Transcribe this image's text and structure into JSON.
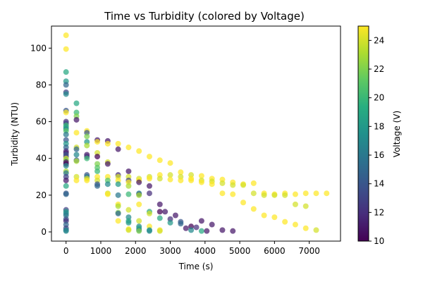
{
  "chart_data": {
    "type": "scatter",
    "title": "Time vs Turbidity (colored by Voltage)",
    "xlabel": "Time (s)",
    "ylabel": "Turbidity (NTU)",
    "xlim": [
      -420,
      7900
    ],
    "ylim": [
      -5,
      112
    ],
    "xticks": [
      0,
      1000,
      2000,
      3000,
      4000,
      5000,
      6000,
      7000
    ],
    "yticks": [
      0,
      20,
      40,
      60,
      80,
      100
    ],
    "grid": false,
    "colorbar": {
      "label": "Voltage (V)",
      "range": [
        10,
        25
      ],
      "ticks": [
        10,
        12,
        14,
        16,
        18,
        20,
        22,
        24
      ],
      "colormap": "viridis"
    },
    "series": [
      {
        "points": [
          {
            "x": 0,
            "y": 107,
            "v": 25
          },
          {
            "x": 0,
            "y": 99.5,
            "v": 25
          },
          {
            "x": 0,
            "y": 87,
            "v": 19
          },
          {
            "x": 0,
            "y": 82,
            "v": 18
          },
          {
            "x": 0,
            "y": 80,
            "v": 15
          },
          {
            "x": 0,
            "y": 76,
            "v": 13
          },
          {
            "x": 0,
            "y": 75,
            "v": 17
          },
          {
            "x": 0,
            "y": 66,
            "v": 14
          },
          {
            "x": 0,
            "y": 65,
            "v": 25
          },
          {
            "x": 0,
            "y": 60,
            "v": 12
          },
          {
            "x": 0,
            "y": 59,
            "v": 13
          },
          {
            "x": 0,
            "y": 58,
            "v": 20
          },
          {
            "x": 0,
            "y": 57,
            "v": 19
          },
          {
            "x": 0,
            "y": 56,
            "v": 17
          },
          {
            "x": 0,
            "y": 55,
            "v": 21
          },
          {
            "x": 0,
            "y": 53,
            "v": 16
          },
          {
            "x": 0,
            "y": 50,
            "v": 14
          },
          {
            "x": 0,
            "y": 48,
            "v": 18
          },
          {
            "x": 0,
            "y": 46,
            "v": 15
          },
          {
            "x": 0,
            "y": 44,
            "v": 12
          },
          {
            "x": 0,
            "y": 43,
            "v": 11
          },
          {
            "x": 0,
            "y": 42,
            "v": 14
          },
          {
            "x": 0,
            "y": 41,
            "v": 13
          },
          {
            "x": 0,
            "y": 40,
            "v": 24
          },
          {
            "x": 0,
            "y": 39,
            "v": 22
          },
          {
            "x": 0,
            "y": 38,
            "v": 11
          },
          {
            "x": 0,
            "y": 37,
            "v": 10
          },
          {
            "x": 0,
            "y": 36,
            "v": 17
          },
          {
            "x": 0,
            "y": 33,
            "v": 23
          },
          {
            "x": 0,
            "y": 32,
            "v": 16
          },
          {
            "x": 0,
            "y": 30,
            "v": 13
          },
          {
            "x": 0,
            "y": 28,
            "v": 11
          },
          {
            "x": 0,
            "y": 25,
            "v": 19
          },
          {
            "x": 0,
            "y": 21,
            "v": 14
          },
          {
            "x": 0,
            "y": 20.5,
            "v": 15
          },
          {
            "x": 0,
            "y": 12,
            "v": 13
          },
          {
            "x": 0,
            "y": 11,
            "v": 18
          },
          {
            "x": 0,
            "y": 10,
            "v": 17
          },
          {
            "x": 0,
            "y": 9,
            "v": 16
          },
          {
            "x": 0,
            "y": 7,
            "v": 14
          },
          {
            "x": 0,
            "y": 6,
            "v": 12
          },
          {
            "x": 0,
            "y": 4,
            "v": 15
          },
          {
            "x": 0,
            "y": 2,
            "v": 13
          },
          {
            "x": 0,
            "y": 1,
            "v": 16
          },
          {
            "x": 0,
            "y": 0.5,
            "v": 17
          },
          {
            "x": 300,
            "y": 70,
            "v": 19
          },
          {
            "x": 300,
            "y": 65,
            "v": 20
          },
          {
            "x": 300,
            "y": 63,
            "v": 22
          },
          {
            "x": 300,
            "y": 61,
            "v": 11
          },
          {
            "x": 300,
            "y": 54,
            "v": 25
          },
          {
            "x": 300,
            "y": 46,
            "v": 24
          },
          {
            "x": 300,
            "y": 45,
            "v": 15
          },
          {
            "x": 300,
            "y": 42,
            "v": 17
          },
          {
            "x": 300,
            "y": 39,
            "v": 14
          },
          {
            "x": 300,
            "y": 38.5,
            "v": 23
          },
          {
            "x": 300,
            "y": 30,
            "v": 24
          },
          {
            "x": 300,
            "y": 28,
            "v": 25
          },
          {
            "x": 600,
            "y": 55,
            "v": 25
          },
          {
            "x": 600,
            "y": 54,
            "v": 14
          },
          {
            "x": 600,
            "y": 52,
            "v": 22
          },
          {
            "x": 600,
            "y": 49,
            "v": 18
          },
          {
            "x": 600,
            "y": 47,
            "v": 23
          },
          {
            "x": 600,
            "y": 42,
            "v": 11
          },
          {
            "x": 600,
            "y": 41,
            "v": 12
          },
          {
            "x": 600,
            "y": 40,
            "v": 20
          },
          {
            "x": 600,
            "y": 31,
            "v": 14
          },
          {
            "x": 600,
            "y": 30,
            "v": 16
          },
          {
            "x": 600,
            "y": 29,
            "v": 24
          },
          {
            "x": 600,
            "y": 28,
            "v": 25
          },
          {
            "x": 900,
            "y": 50,
            "v": 11
          },
          {
            "x": 900,
            "y": 49,
            "v": 25
          },
          {
            "x": 900,
            "y": 43,
            "v": 24
          },
          {
            "x": 900,
            "y": 41,
            "v": 10
          },
          {
            "x": 900,
            "y": 37,
            "v": 22
          },
          {
            "x": 900,
            "y": 35,
            "v": 21
          },
          {
            "x": 900,
            "y": 33,
            "v": 20
          },
          {
            "x": 900,
            "y": 30,
            "v": 25
          },
          {
            "x": 900,
            "y": 28,
            "v": 24
          },
          {
            "x": 900,
            "y": 26,
            "v": 14
          },
          {
            "x": 900,
            "y": 25,
            "v": 15
          },
          {
            "x": 1200,
            "y": 49.5,
            "v": 11
          },
          {
            "x": 1200,
            "y": 48,
            "v": 25
          },
          {
            "x": 1200,
            "y": 38,
            "v": 24
          },
          {
            "x": 1200,
            "y": 37,
            "v": 11
          },
          {
            "x": 1200,
            "y": 30,
            "v": 25
          },
          {
            "x": 1200,
            "y": 28,
            "v": 21
          },
          {
            "x": 1200,
            "y": 26,
            "v": 17
          },
          {
            "x": 1200,
            "y": 21,
            "v": 24
          },
          {
            "x": 1200,
            "y": 20.5,
            "v": 25
          },
          {
            "x": 1500,
            "y": 48,
            "v": 25
          },
          {
            "x": 1500,
            "y": 45,
            "v": 11
          },
          {
            "x": 1500,
            "y": 31,
            "v": 12
          },
          {
            "x": 1500,
            "y": 30,
            "v": 24
          },
          {
            "x": 1500,
            "y": 28,
            "v": 25
          },
          {
            "x": 1500,
            "y": 26,
            "v": 18
          },
          {
            "x": 1500,
            "y": 20,
            "v": 16
          },
          {
            "x": 1500,
            "y": 15,
            "v": 25
          },
          {
            "x": 1500,
            "y": 14,
            "v": 23
          },
          {
            "x": 1500,
            "y": 10.5,
            "v": 22
          },
          {
            "x": 1500,
            "y": 10,
            "v": 15
          },
          {
            "x": 1500,
            "y": 6,
            "v": 25
          },
          {
            "x": 1800,
            "y": 46,
            "v": 25
          },
          {
            "x": 1800,
            "y": 33,
            "v": 11
          },
          {
            "x": 1800,
            "y": 30,
            "v": 24
          },
          {
            "x": 1800,
            "y": 28,
            "v": 13
          },
          {
            "x": 1800,
            "y": 27,
            "v": 25
          },
          {
            "x": 1800,
            "y": 25,
            "v": 23
          },
          {
            "x": 1800,
            "y": 20.5,
            "v": 20
          },
          {
            "x": 1800,
            "y": 12,
            "v": 24
          },
          {
            "x": 1800,
            "y": 8,
            "v": 17
          },
          {
            "x": 1800,
            "y": 6,
            "v": 19
          },
          {
            "x": 1800,
            "y": 5,
            "v": 18
          },
          {
            "x": 1800,
            "y": 1.5,
            "v": 25
          },
          {
            "x": 1800,
            "y": 1,
            "v": 24
          },
          {
            "x": 2100,
            "y": 44,
            "v": 25
          },
          {
            "x": 2100,
            "y": 29,
            "v": 24
          },
          {
            "x": 2100,
            "y": 28,
            "v": 25
          },
          {
            "x": 2100,
            "y": 27,
            "v": 11
          },
          {
            "x": 2100,
            "y": 21,
            "v": 17
          },
          {
            "x": 2100,
            "y": 20.5,
            "v": 14
          },
          {
            "x": 2100,
            "y": 20,
            "v": 23
          },
          {
            "x": 2100,
            "y": 15,
            "v": 25
          },
          {
            "x": 2100,
            "y": 6,
            "v": 24
          },
          {
            "x": 2100,
            "y": 3,
            "v": 17
          },
          {
            "x": 2100,
            "y": 2,
            "v": 19
          },
          {
            "x": 2100,
            "y": 1,
            "v": 16
          },
          {
            "x": 2100,
            "y": 0.5,
            "v": 22
          },
          {
            "x": 2400,
            "y": 41,
            "v": 25
          },
          {
            "x": 2400,
            "y": 30,
            "v": 24
          },
          {
            "x": 2400,
            "y": 29,
            "v": 25
          },
          {
            "x": 2400,
            "y": 25,
            "v": 11
          },
          {
            "x": 2400,
            "y": 21,
            "v": 12
          },
          {
            "x": 2400,
            "y": 11,
            "v": 19
          },
          {
            "x": 2400,
            "y": 10,
            "v": 24
          },
          {
            "x": 2400,
            "y": 3,
            "v": 25
          },
          {
            "x": 2400,
            "y": 1,
            "v": 18
          },
          {
            "x": 2400,
            "y": 0.5,
            "v": 17
          },
          {
            "x": 2700,
            "y": 39,
            "v": 25
          },
          {
            "x": 2700,
            "y": 31,
            "v": 25
          },
          {
            "x": 2700,
            "y": 29,
            "v": 24
          },
          {
            "x": 2700,
            "y": 15,
            "v": 11
          },
          {
            "x": 2700,
            "y": 11,
            "v": 10
          },
          {
            "x": 2700,
            "y": 7.5,
            "v": 19
          },
          {
            "x": 2700,
            "y": 1,
            "v": 25
          },
          {
            "x": 2700,
            "y": 0.5,
            "v": 24
          },
          {
            "x": 2850,
            "y": 11,
            "v": 11
          },
          {
            "x": 3000,
            "y": 37.5,
            "v": 25
          },
          {
            "x": 3000,
            "y": 31,
            "v": 24
          },
          {
            "x": 3000,
            "y": 28.5,
            "v": 25
          },
          {
            "x": 3000,
            "y": 7,
            "v": 12
          },
          {
            "x": 3000,
            "y": 5,
            "v": 18
          },
          {
            "x": 3150,
            "y": 9,
            "v": 11
          },
          {
            "x": 3300,
            "y": 32.5,
            "v": 25
          },
          {
            "x": 3300,
            "y": 30,
            "v": 24
          },
          {
            "x": 3300,
            "y": 28,
            "v": 25
          },
          {
            "x": 3300,
            "y": 5.5,
            "v": 14
          },
          {
            "x": 3300,
            "y": 4.5,
            "v": 15
          },
          {
            "x": 3450,
            "y": 2,
            "v": 11
          },
          {
            "x": 3600,
            "y": 31,
            "v": 24
          },
          {
            "x": 3600,
            "y": 29,
            "v": 25
          },
          {
            "x": 3600,
            "y": 28,
            "v": 25
          },
          {
            "x": 3600,
            "y": 3,
            "v": 10
          },
          {
            "x": 3600,
            "y": 1,
            "v": 17
          },
          {
            "x": 3750,
            "y": 2.5,
            "v": 12
          },
          {
            "x": 3900,
            "y": 30.5,
            "v": 25
          },
          {
            "x": 3900,
            "y": 28,
            "v": 24
          },
          {
            "x": 3900,
            "y": 27,
            "v": 25
          },
          {
            "x": 3900,
            "y": 6,
            "v": 11
          },
          {
            "x": 3900,
            "y": 0.5,
            "v": 19
          },
          {
            "x": 4050,
            "y": 0.5,
            "v": 11
          },
          {
            "x": 4200,
            "y": 29,
            "v": 25
          },
          {
            "x": 4200,
            "y": 27.5,
            "v": 24
          },
          {
            "x": 4200,
            "y": 26,
            "v": 25
          },
          {
            "x": 4200,
            "y": 4,
            "v": 11
          },
          {
            "x": 4500,
            "y": 28.5,
            "v": 25
          },
          {
            "x": 4500,
            "y": 26.5,
            "v": 24
          },
          {
            "x": 4500,
            "y": 21,
            "v": 25
          },
          {
            "x": 4500,
            "y": 1,
            "v": 11
          },
          {
            "x": 4800,
            "y": 27,
            "v": 25
          },
          {
            "x": 4800,
            "y": 25.5,
            "v": 24
          },
          {
            "x": 4800,
            "y": 20.5,
            "v": 25
          },
          {
            "x": 4800,
            "y": 0.5,
            "v": 11
          },
          {
            "x": 5100,
            "y": 26,
            "v": 25
          },
          {
            "x": 5100,
            "y": 25.5,
            "v": 24
          },
          {
            "x": 5100,
            "y": 16,
            "v": 25
          },
          {
            "x": 5400,
            "y": 26.5,
            "v": 25
          },
          {
            "x": 5400,
            "y": 21,
            "v": 24
          },
          {
            "x": 5400,
            "y": 12.5,
            "v": 25
          },
          {
            "x": 5700,
            "y": 21,
            "v": 25
          },
          {
            "x": 5700,
            "y": 20,
            "v": 24
          },
          {
            "x": 5700,
            "y": 9,
            "v": 25
          },
          {
            "x": 6000,
            "y": 20.5,
            "v": 25
          },
          {
            "x": 6000,
            "y": 20,
            "v": 24
          },
          {
            "x": 6000,
            "y": 8,
            "v": 25
          },
          {
            "x": 6300,
            "y": 21,
            "v": 25
          },
          {
            "x": 6300,
            "y": 20,
            "v": 24
          },
          {
            "x": 6300,
            "y": 5.5,
            "v": 25
          },
          {
            "x": 6600,
            "y": 20.5,
            "v": 25
          },
          {
            "x": 6600,
            "y": 15,
            "v": 24
          },
          {
            "x": 6600,
            "y": 4,
            "v": 25
          },
          {
            "x": 6900,
            "y": 21,
            "v": 25
          },
          {
            "x": 6900,
            "y": 14,
            "v": 24
          },
          {
            "x": 6900,
            "y": 2,
            "v": 25
          },
          {
            "x": 7200,
            "y": 21,
            "v": 25
          },
          {
            "x": 7200,
            "y": 1,
            "v": 24
          },
          {
            "x": 7500,
            "y": 21,
            "v": 25
          }
        ]
      }
    ]
  }
}
